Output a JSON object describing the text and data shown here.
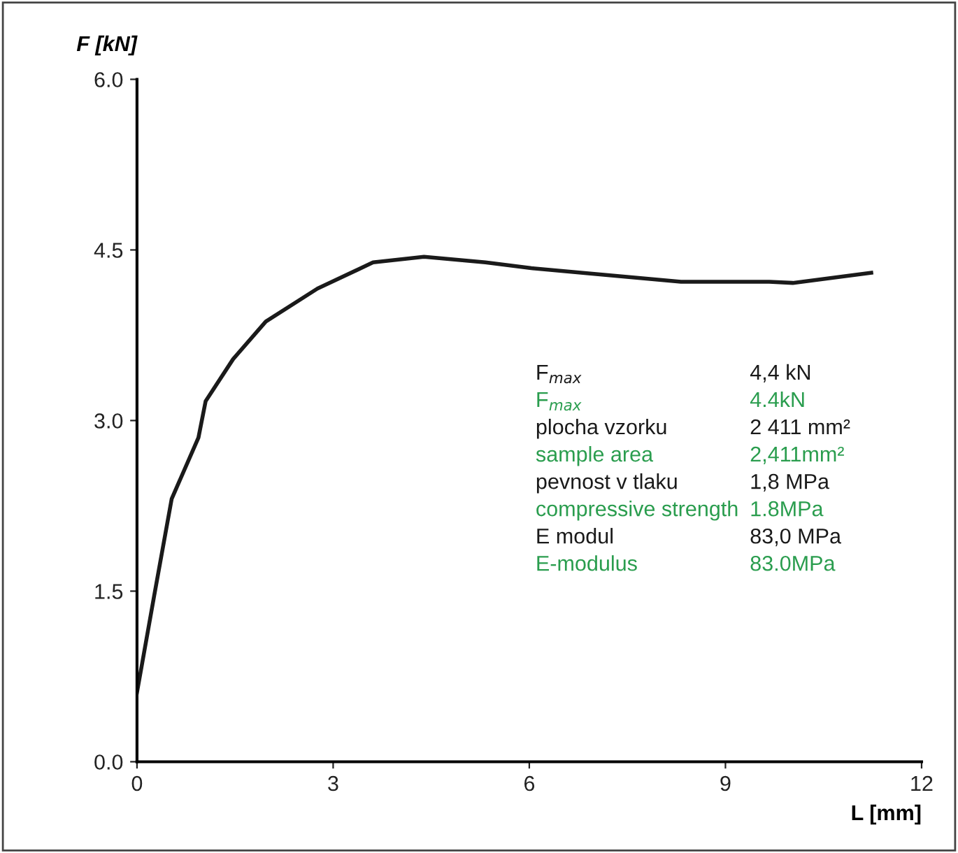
{
  "chart_data": {
    "type": "line",
    "xlabel": "L [mm]",
    "ylabel": "F [kN]",
    "x": [
      0,
      0.26,
      0.53,
      0.94,
      1.05,
      1.47,
      1.97,
      2.76,
      3.61,
      4.39,
      5.33,
      6.03,
      7.17,
      8.32,
      9.67,
      10.03,
      11.23
    ],
    "series": [
      {
        "color": "#1a1a1a",
        "values": [
          0.61,
          1.45,
          2.31,
          2.85,
          3.17,
          3.54,
          3.87,
          4.16,
          4.39,
          4.44,
          4.39,
          4.34,
          4.28,
          4.22,
          4.22,
          4.21,
          4.3
        ]
      }
    ],
    "xlim": [
      0,
      12
    ],
    "ylim": [
      0,
      6
    ],
    "xticks": [
      0,
      3,
      6,
      9,
      12
    ],
    "yticks": [
      {
        "value": 0,
        "label": "0.0"
      },
      {
        "value": 1.5,
        "label": "1.5"
      },
      {
        "value": 3,
        "label": "3.0"
      },
      {
        "value": 4.5,
        "label": "4.5"
      },
      {
        "value": 6,
        "label": "6.0"
      }
    ],
    "grid": false,
    "legend": false,
    "marker": "none",
    "line_style": "solid",
    "annotations": [
      "F$_{max}$",
      "4,4 kN",
      "F$_{max}$",
      "4.4kN",
      "plocha vzorku",
      "2 411 mm²",
      "sample area",
      "2,411mm²",
      "pevnost v tlaku",
      "1,8 MPa",
      "compressive strength",
      "1.8MPa",
      "E modul",
      "83,0 MPa",
      "E-modulus",
      "83.0MPa"
    ]
  }
}
